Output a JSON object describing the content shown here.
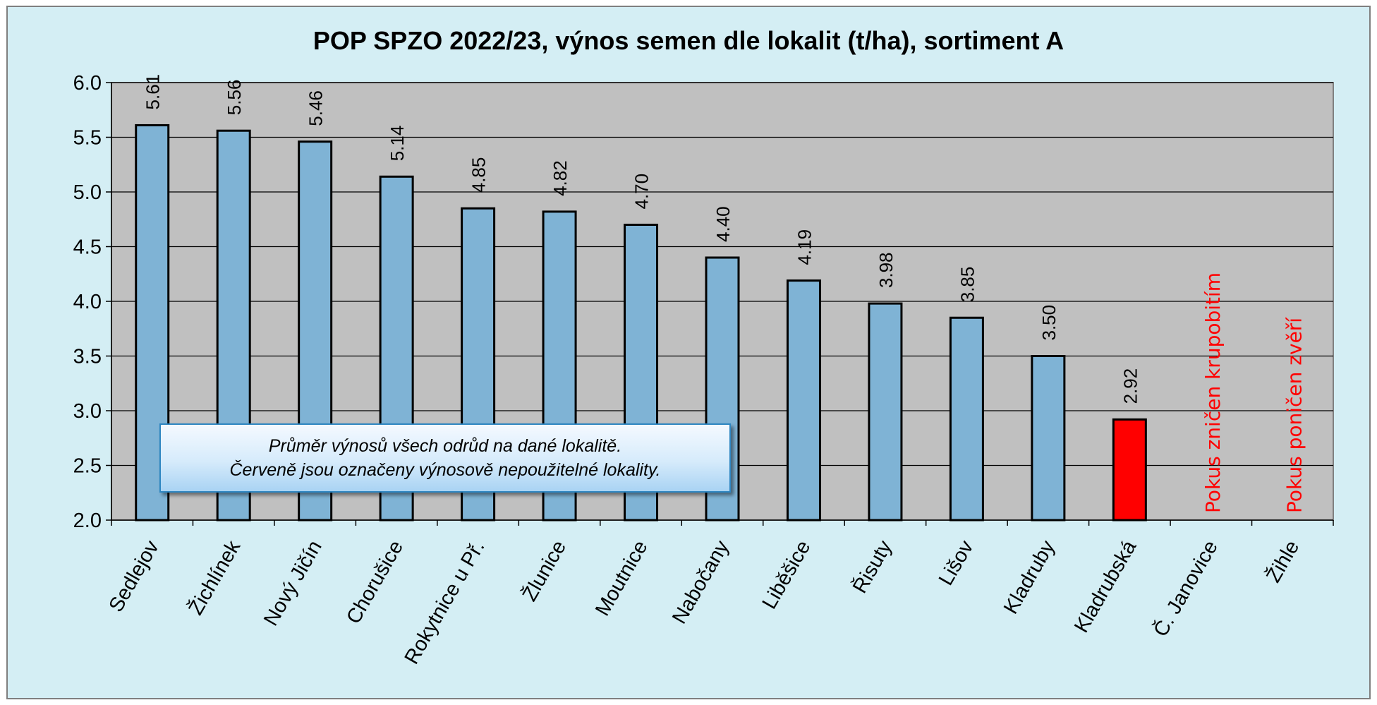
{
  "chart_data": {
    "type": "bar",
    "title": "POP SPZO 2022/23, výnos semen dle lokalit (t/ha), sortiment A",
    "xlabel": "",
    "ylabel": "",
    "ylim": [
      2.0,
      6.0
    ],
    "yticks": [
      "2.0",
      "2.5",
      "3.0",
      "3.5",
      "4.0",
      "4.5",
      "5.0",
      "5.5",
      "6.0"
    ],
    "grid": true,
    "legend": "none",
    "categories": [
      "Sedlejov",
      "Žichlínek",
      "Nový Jičín",
      "Chorušice",
      "Rokytnice u Př.",
      "Žlunice",
      "Moutnice",
      "Nabočany",
      "Liběšice",
      "Řisuty",
      "Lišov",
      "Kladruby",
      "Kladrubská",
      "Č. Janovice",
      "Žihle"
    ],
    "values": [
      5.61,
      5.56,
      5.46,
      5.14,
      4.85,
      4.82,
      4.7,
      4.4,
      4.19,
      3.98,
      3.85,
      3.5,
      2.92,
      null,
      null
    ],
    "value_labels": [
      "5.61",
      "5.56",
      "5.46",
      "5.14",
      "4.85",
      "4.82",
      "4.70",
      "4.40",
      "4.19",
      "3.98",
      "3.85",
      "3.50",
      "2.92",
      "",
      ""
    ],
    "highlighted": [
      false,
      false,
      false,
      false,
      false,
      false,
      false,
      false,
      false,
      false,
      false,
      false,
      true,
      false,
      false
    ],
    "annotations": [
      {
        "category": "Č. Janovice",
        "text": "Pokus zničen krupobitím"
      },
      {
        "category": "Žihle",
        "text": "Pokus poničen zvěří"
      }
    ],
    "note": {
      "line1": "Průměr výnosů všech odrůd na dané lokalitě.",
      "line2": "Červeně jsou označeny výnosově nepoužitelné lokality."
    },
    "colors": {
      "outer_background": "#d4eef4",
      "plot_background": "#c0c0c0",
      "bar": "#7fb3d5",
      "bar_highlight": "#ff0000",
      "annotation_text": "#ff0000",
      "gridline": "#000000"
    }
  }
}
